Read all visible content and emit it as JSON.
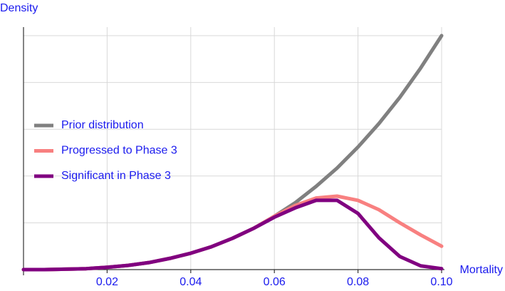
{
  "chart_data": {
    "type": "line",
    "y_label": "Density",
    "x_label": "Mortality",
    "x": [
      0,
      0.005,
      0.01,
      0.015,
      0.02,
      0.025,
      0.03,
      0.035,
      0.04,
      0.045,
      0.05,
      0.055,
      0.06,
      0.065,
      0.07,
      0.075,
      0.08,
      0.085,
      0.09,
      0.095,
      0.1
    ],
    "series": [
      {
        "name": "Prior distribution",
        "color": "#808080",
        "values": [
          0,
          0,
          0.01,
          0.02,
          0.05,
          0.09,
          0.15,
          0.24,
          0.35,
          0.49,
          0.67,
          0.88,
          1.14,
          1.43,
          1.78,
          2.17,
          2.62,
          3.12,
          3.68,
          4.31,
          5
        ]
      },
      {
        "name": "Progressed to Phase 3",
        "color": "#f88080",
        "values": [
          0,
          0,
          0.01,
          0.02,
          0.05,
          0.09,
          0.15,
          0.24,
          0.35,
          0.49,
          0.67,
          0.88,
          1.14,
          1.37,
          1.53,
          1.57,
          1.48,
          1.28,
          1.0,
          0.74,
          0.5
        ]
      },
      {
        "name": "Significant in Phase 3",
        "color": "#800080",
        "values": [
          0,
          0,
          0.01,
          0.02,
          0.05,
          0.09,
          0.15,
          0.24,
          0.35,
          0.49,
          0.67,
          0.88,
          1.12,
          1.32,
          1.48,
          1.48,
          1.2,
          0.68,
          0.28,
          0.08,
          0.02
        ]
      }
    ],
    "xlim": [
      0,
      0.1
    ],
    "xticks": [
      0.02,
      0.04,
      0.06,
      0.08,
      {
        "value": 0.1,
        "label": "0.10"
      }
    ],
    "ylim": [
      0,
      5
    ],
    "yticks": [
      1,
      2,
      3,
      4,
      5
    ],
    "grid": true,
    "legend": "left"
  }
}
